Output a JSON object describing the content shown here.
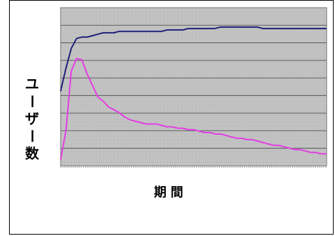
{
  "chart_data": {
    "type": "line",
    "title": "",
    "xlabel": "期間",
    "ylabel": "ユーザー数",
    "grid": true,
    "ylim": [
      0,
      100
    ],
    "x": [
      0,
      2,
      4,
      6,
      8,
      10,
      12,
      14,
      16,
      18,
      20,
      22,
      24,
      26,
      28,
      30,
      32,
      34,
      36,
      38,
      40,
      42,
      44,
      46,
      48,
      50,
      52,
      54,
      56,
      58,
      60,
      62,
      64,
      66,
      68,
      70,
      72,
      74,
      76,
      78,
      80,
      82,
      84,
      86,
      88,
      90,
      92,
      94,
      96,
      98,
      100
    ],
    "series": [
      {
        "color": "#1f1f7a",
        "values": [
          48,
          64,
          78,
          85,
          86,
          86,
          87,
          88,
          89,
          89,
          89,
          90,
          90,
          90,
          90,
          90,
          90,
          90,
          90,
          90,
          91,
          91,
          91,
          91,
          92,
          92,
          92,
          92,
          92,
          92,
          93,
          93,
          93,
          93,
          93,
          93,
          93,
          93,
          92,
          92,
          92,
          92,
          92,
          92,
          92,
          92,
          92,
          92,
          92,
          92,
          92
        ]
      },
      {
        "color": "#e43ce4",
        "values": [
          0,
          20,
          62,
          71,
          70,
          60,
          52,
          44,
          41,
          37,
          35,
          33,
          30,
          28,
          27,
          26,
          25,
          25,
          25,
          24,
          23,
          23,
          22,
          22,
          21,
          21,
          20,
          19,
          19,
          18,
          18,
          17,
          16,
          15,
          15,
          14,
          14,
          13,
          12,
          11,
          10,
          10,
          9,
          8,
          7,
          7,
          6,
          5,
          5,
          4,
          4
        ]
      }
    ]
  }
}
